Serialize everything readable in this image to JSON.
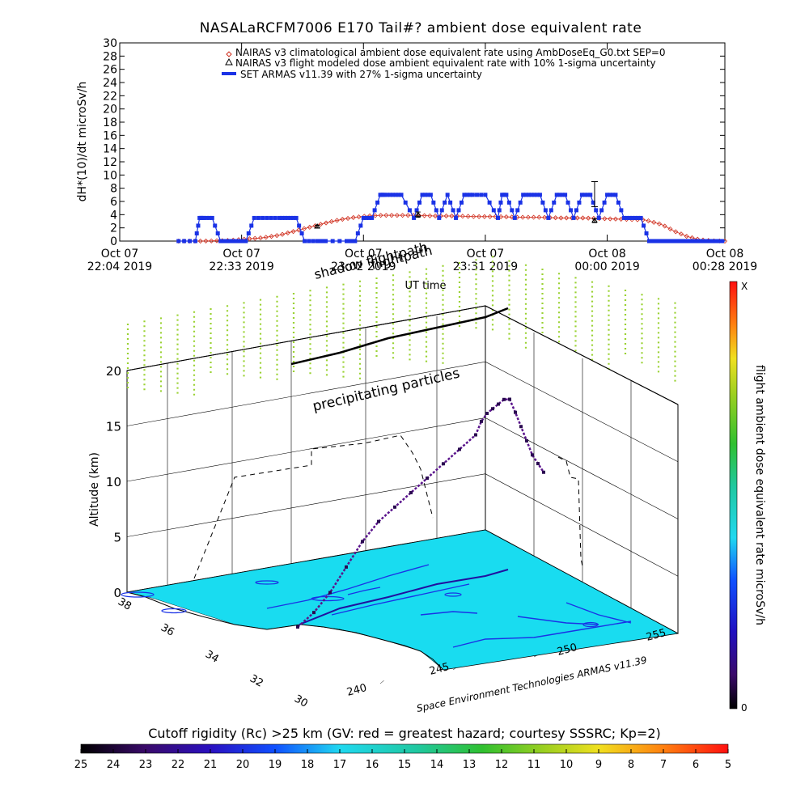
{
  "chart_data": [
    {
      "type": "line",
      "title": "NASALaRCFM7006  E170 Tail#? ambient dose equivalent rate",
      "ylabel": "dH*(10)/dt microSv/h",
      "xlabel": "UT time",
      "ylim": [
        0,
        30
      ],
      "yticks": [
        "0",
        "2",
        "4",
        "6",
        "8",
        "10",
        "12",
        "14",
        "16",
        "18",
        "20",
        "22",
        "24",
        "26",
        "28",
        "30"
      ],
      "xticks": [
        {
          "t": 0,
          "line1": "Oct 07",
          "line2": "22:04 2019"
        },
        {
          "t": 29,
          "line1": "Oct 07",
          "line2": "22:33 2019"
        },
        {
          "t": 58,
          "line1": "Oct 07",
          "line2": "23:02 2019"
        },
        {
          "t": 87,
          "line1": "Oct 07",
          "line2": "23:31 2019"
        },
        {
          "t": 116,
          "line1": "Oct 08",
          "line2": "00:00 2019"
        },
        {
          "t": 144,
          "line1": "Oct 08",
          "line2": "00:28 2019"
        }
      ],
      "legend": [
        "NAIRAS v3 climatological ambient dose equivalent rate using AmbDoseEq_G0.txt SEP=0",
        "NAIRAS v3 flight modeled dose ambient equivalent rate with 10% 1-sigma uncertainty",
        "SET ARMAS v11.39 with 27% 1-sigma uncertainty"
      ],
      "series": [
        {
          "name": "NAIRAS v3 climatological ambient dose equivalent rate using AmbDoseEq_G0.txt SEP=0",
          "color": "#d03020",
          "marker": "diamond",
          "x": [
            14,
            20,
            26,
            30,
            34,
            38,
            41,
            44,
            47,
            50,
            53,
            56,
            59,
            62,
            66,
            70,
            75,
            80,
            85,
            90,
            95,
            100,
            105,
            110,
            115,
            120,
            125,
            129,
            132,
            135,
            138,
            141,
            144
          ],
          "y": [
            0,
            0,
            0.1,
            0.3,
            0.5,
            0.9,
            1.4,
            1.9,
            2.4,
            2.9,
            3.3,
            3.6,
            3.8,
            3.9,
            3.9,
            3.9,
            3.8,
            3.8,
            3.7,
            3.7,
            3.6,
            3.6,
            3.5,
            3.5,
            3.4,
            3.3,
            3.2,
            2.5,
            1.5,
            0.7,
            0.2,
            0.05,
            0
          ]
        },
        {
          "name": "NAIRAS v3 flight modeled dose ambient equivalent rate with 10% 1-sigma uncertainty",
          "color": "#000000",
          "marker": "triangle",
          "x": [
            47,
            71,
            113
          ],
          "y": [
            2.2,
            4.0,
            3.1
          ],
          "err": [
            0.2,
            0.4,
            0.3
          ]
        },
        {
          "name": "SET ARMAS v11.39 with 27% 1-sigma uncertainty",
          "color": "#1a32e6",
          "marker": "square",
          "x": [
            14,
            18,
            19,
            20,
            22,
            24,
            26,
            28,
            30,
            32,
            35,
            38,
            40,
            42,
            44,
            47,
            49,
            54,
            56,
            58,
            60,
            62,
            63,
            65,
            67,
            70,
            72,
            74,
            76,
            78,
            80,
            82,
            84,
            87,
            90,
            91,
            92,
            94,
            96,
            98,
            100,
            102,
            104,
            106,
            108,
            110,
            112,
            114,
            116,
            118,
            120,
            122,
            124,
            126,
            128,
            130,
            132,
            134,
            136,
            138,
            140,
            142,
            144
          ],
          "y": [
            0,
            0,
            3.5,
            3.5,
            3.5,
            0,
            0,
            0,
            0,
            3.5,
            3.5,
            3.5,
            3.5,
            3.5,
            0,
            0,
            0,
            0,
            0,
            3.5,
            3.5,
            7,
            7,
            7,
            7,
            3.5,
            7,
            7,
            3.5,
            7,
            3.5,
            7,
            7,
            7,
            3.5,
            7,
            7,
            3.5,
            7,
            7,
            7,
            3.5,
            7,
            7,
            3.5,
            7,
            7,
            3.5,
            7,
            7,
            3.5,
            3.5,
            3.5,
            0,
            0,
            0,
            0,
            0,
            0,
            0,
            0,
            0,
            0
          ],
          "err_point": {
            "x": 113,
            "y": 7.1,
            "err": 1.9
          }
        }
      ]
    },
    {
      "type": "scatter",
      "ylabel": "Altitude (km)",
      "zticks": [
        "0",
        "5",
        "10",
        "15",
        "20"
      ],
      "lat_ticks": [
        "36",
        "34",
        "32",
        "30",
        "38"
      ],
      "lon_ticks": [
        "240",
        "245",
        "250",
        "255"
      ],
      "annotations": [
        "shadow flightpath",
        "flightpath",
        "precipitating particles",
        "Space Environment Technologies ARMAS v11.39"
      ],
      "flight_altitude_km": [
        0,
        0.5,
        1.5,
        3,
        4.5,
        5.5,
        6,
        6.5,
        7,
        7.5,
        8,
        8.5,
        9.5,
        10,
        10.2,
        10.4,
        10.6,
        10.4,
        9,
        7.5,
        6,
        4.5,
        3.5,
        2.5
      ]
    }
  ],
  "colorbar_right": {
    "label": "flight ambient dose equivalent rate microSv/h",
    "top_label": "X",
    "bottom_label": "0"
  },
  "colorbar_bottom": {
    "title": "Cutoff rigidity (Rc) >25 km (GV: red = greatest hazard; courtesy SSSRC; Kp=2)",
    "ticks": [
      "25",
      "24",
      "23",
      "22",
      "21",
      "20",
      "19",
      "18",
      "17",
      "16",
      "15",
      "14",
      "13",
      "12",
      "11",
      "10",
      "9",
      "8",
      "7",
      "6",
      "5"
    ]
  },
  "colors": {
    "ocean_cyan": "#19dcf0",
    "precip_green": "#9ad232",
    "flight_purple": "#5a148c",
    "armas_blue": "#1a32e6",
    "nairas_red": "#d03020"
  }
}
